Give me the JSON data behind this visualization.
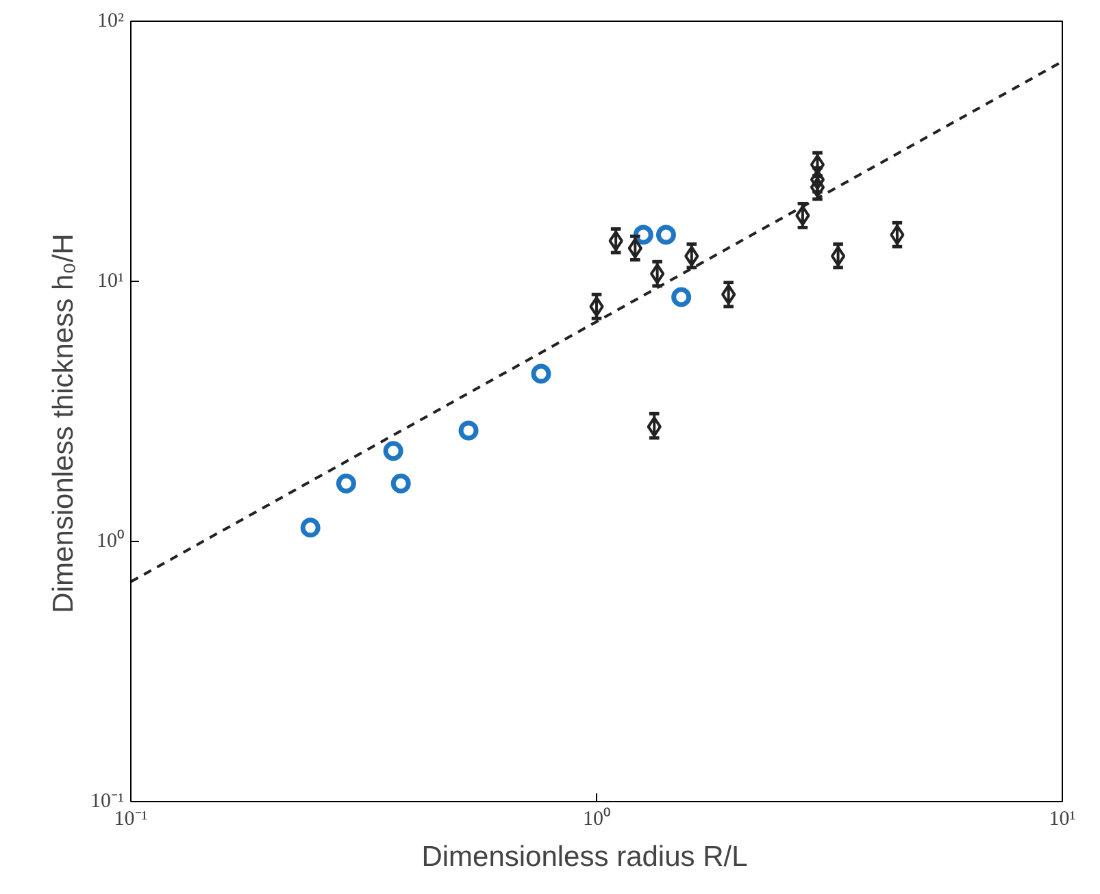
{
  "chart_data": {
    "type": "scatter",
    "xlabel": "Dimensionless radius    R/L",
    "ylabel": "Dimensionless thickness    h₀/H",
    "log": "xy",
    "grid": false,
    "xlim": [
      0.1,
      10
    ],
    "ylim": [
      0.1,
      100
    ],
    "xticks": [
      {
        "value": 0.1,
        "label": "10⁻¹"
      },
      {
        "value": 1,
        "label": "10⁰"
      },
      {
        "value": 10,
        "label": "10¹"
      }
    ],
    "yticks": [
      {
        "value": 0.1,
        "label": "10⁻¹"
      },
      {
        "value": 1,
        "label": "10⁰"
      },
      {
        "value": 10,
        "label": "10¹"
      },
      {
        "value": 100,
        "label": "10²"
      }
    ],
    "series": [
      {
        "marker": "circle",
        "color": "#1f77c4",
        "x": [
          0.243,
          0.29,
          0.366,
          0.38,
          0.531,
          0.76,
          1.26,
          1.41,
          1.52
        ],
        "values": [
          1.13,
          1.67,
          2.23,
          1.67,
          2.67,
          4.41,
          15.1,
          15.1,
          8.7
        ]
      },
      {
        "marker": "diamond",
        "color": "#222222",
        "x": [
          1.0,
          1.1,
          1.21,
          1.35,
          1.6,
          1.92,
          1.33,
          2.77,
          2.98,
          2.98,
          2.98,
          3.3,
          4.42
        ],
        "values": [
          8.0,
          14.3,
          13.4,
          10.7,
          12.5,
          8.9,
          2.76,
          17.9,
          28.1,
          24.6,
          23.0,
          12.5,
          15.1
        ],
        "errors": [
          [
            7.2,
            8.9
          ],
          [
            12.9,
            15.9
          ],
          [
            12.1,
            14.9
          ],
          [
            9.6,
            11.9
          ],
          [
            11.3,
            13.9
          ],
          [
            8.0,
            9.9
          ],
          [
            2.5,
            3.1
          ],
          [
            16.1,
            19.9
          ],
          [
            25.3,
            31.2
          ],
          [
            22.1,
            27.3
          ],
          [
            20.7,
            25.5
          ],
          [
            11.3,
            13.9
          ],
          [
            13.6,
            16.8
          ]
        ]
      },
      {
        "type": "line",
        "line_style": "dashed",
        "marker": "none",
        "color": "#222222",
        "x": [
          0.1,
          10
        ],
        "values": [
          0.7,
          70
        ]
      }
    ]
  }
}
